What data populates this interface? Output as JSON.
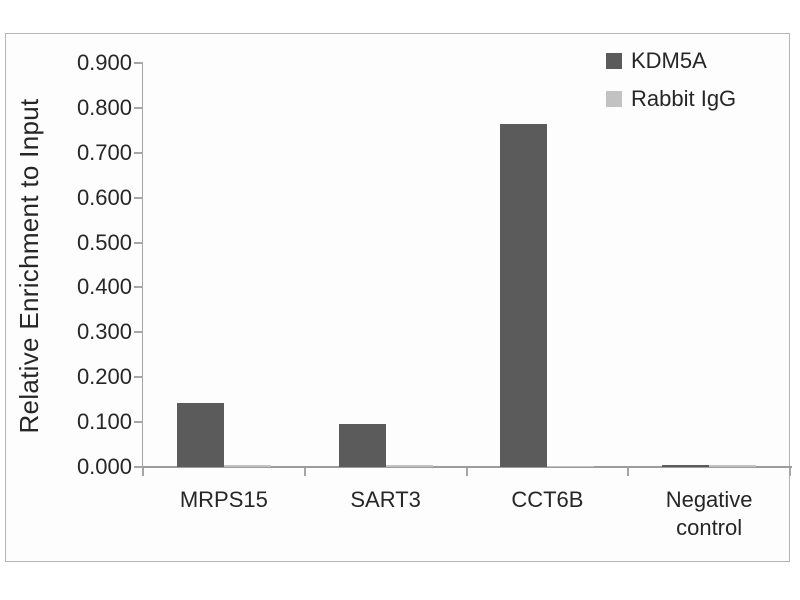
{
  "chart_data": {
    "type": "bar",
    "title": "",
    "xlabel": "",
    "ylabel": "Relative Enrichment to Input",
    "categories": [
      "MRPS15",
      "SART3",
      "CCT6B",
      "Negative control"
    ],
    "series": [
      {
        "name": "KDM5A",
        "color": "#5b5b5b",
        "values": [
          0.143,
          0.096,
          0.765,
          0.004
        ]
      },
      {
        "name": "Rabbit IgG",
        "color": "#c2c2c2",
        "values": [
          0.005,
          0.005,
          0.002,
          0.004
        ]
      }
    ],
    "ylim": [
      0,
      0.9
    ],
    "yticks": [
      "0.000",
      "0.100",
      "0.200",
      "0.300",
      "0.400",
      "0.500",
      "0.600",
      "0.700",
      "0.800",
      "0.900"
    ],
    "grid": false,
    "legend_position": "top-right"
  },
  "colors": {
    "axis": "#a6a6a6",
    "frame_border": "#b5b5b5",
    "text": "#262626",
    "background": "#ffffff"
  }
}
